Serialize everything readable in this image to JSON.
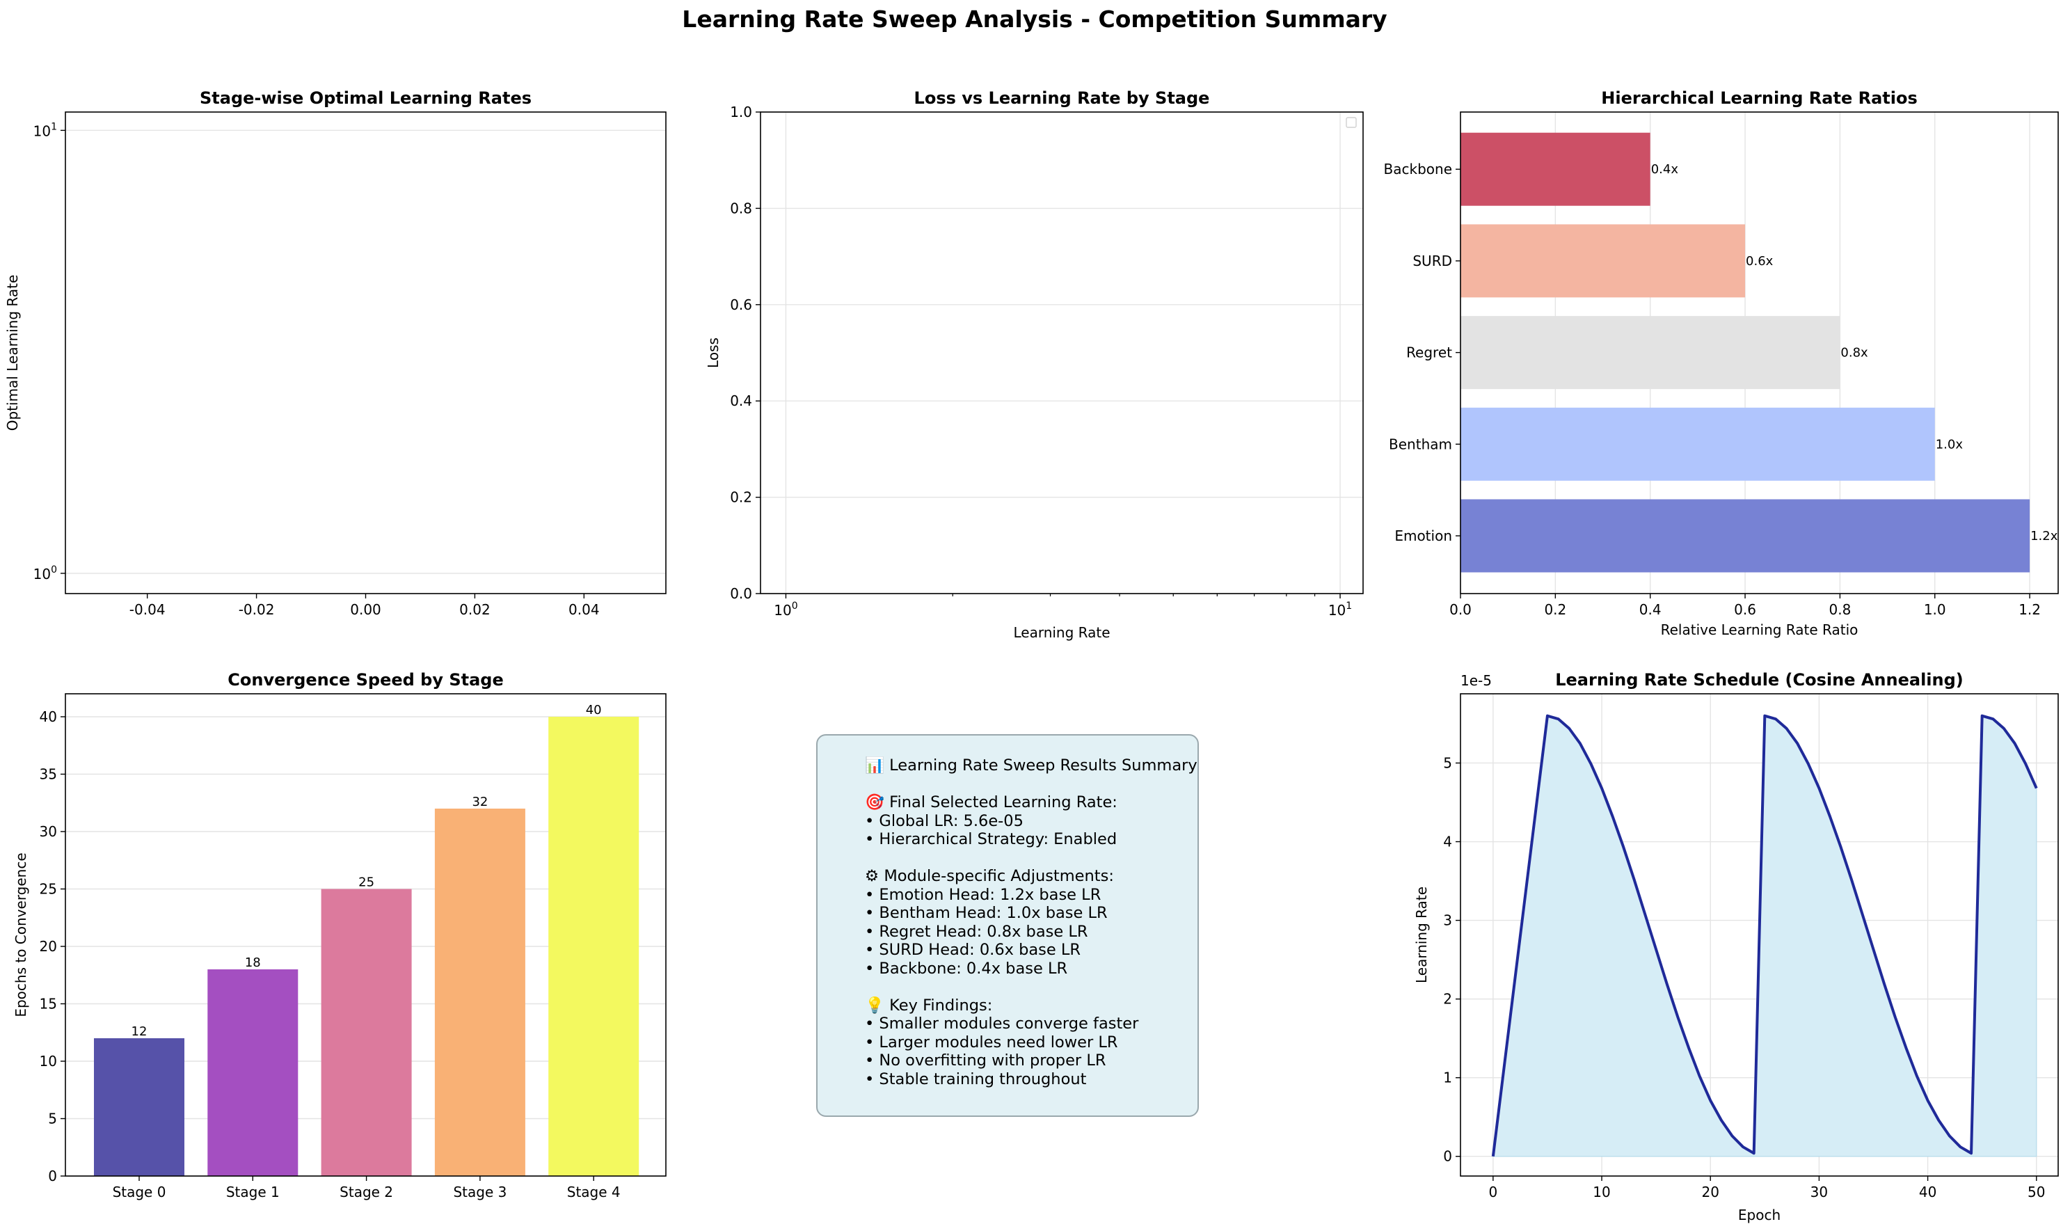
{
  "figure_title": "Learning Rate Sweep Analysis - Competition Summary",
  "chart_data": [
    {
      "id": "optimal-lr",
      "type": "scatter",
      "title": "Stage-wise Optimal Learning Rates",
      "xlabel": "",
      "ylabel": "Optimal Learning Rate",
      "x_ticks": [
        "-0.04",
        "-0.02",
        "0.00",
        "0.02",
        "0.04"
      ],
      "xlim": [
        -0.055,
        0.055
      ],
      "yscale": "log",
      "ylim": [
        0.9,
        11
      ],
      "y_ticks": [
        {
          "base": "10",
          "exp": "0",
          "value": 1
        },
        {
          "base": "10",
          "exp": "1",
          "value": 10
        }
      ],
      "series": [],
      "grid": true
    },
    {
      "id": "loss-vs-lr",
      "type": "line",
      "title": "Loss vs Learning Rate by Stage",
      "xlabel": "Learning Rate",
      "ylabel": "Loss",
      "xscale": "log",
      "xlim": [
        0.9,
        11
      ],
      "x_ticks": [
        {
          "base": "10",
          "exp": "0",
          "value": 1
        },
        {
          "base": "10",
          "exp": "1",
          "value": 10
        }
      ],
      "ylim": [
        0,
        1.0
      ],
      "y_ticks": [
        "0.0",
        "0.2",
        "0.4",
        "0.6",
        "0.8",
        "1.0"
      ],
      "legend": "upper right (empty)",
      "series": [],
      "grid": true
    },
    {
      "id": "hier-ratios",
      "type": "bar",
      "orientation": "horizontal",
      "title": "Hierarchical Learning Rate Ratios",
      "xlabel": "Relative Learning Rate Ratio",
      "ylabel": "",
      "categories": [
        "Emotion",
        "Bentham",
        "Regret",
        "SURD",
        "Backbone"
      ],
      "values": [
        1.2,
        1.0,
        0.8,
        0.6,
        0.4
      ],
      "value_labels": [
        "1.2x",
        "1.0x",
        "0.8x",
        "0.6x",
        "0.4x"
      ],
      "colors": [
        "#7782d4",
        "#b0c5fd",
        "#e3e3e3",
        "#f4b5a1",
        "#cc5066"
      ],
      "xlim": [
        0,
        1.26
      ],
      "x_ticks": [
        "0.0",
        "0.2",
        "0.4",
        "0.6",
        "0.8",
        "1.0",
        "1.2"
      ],
      "grid": true
    },
    {
      "id": "convergence",
      "type": "bar",
      "title": "Convergence Speed by Stage",
      "xlabel": "",
      "ylabel": "Epochs to Convergence",
      "categories": [
        "Stage 0",
        "Stage 1",
        "Stage 2",
        "Stage 3",
        "Stage 4"
      ],
      "values": [
        12,
        18,
        25,
        32,
        40
      ],
      "value_labels": [
        "12",
        "18",
        "25",
        "32",
        "40"
      ],
      "colors": [
        "#5652a9",
        "#a44fc1",
        "#dc7a9d",
        "#f9b175",
        "#f3f95f"
      ],
      "ylim": [
        0,
        42
      ],
      "y_ticks": [
        "0",
        "5",
        "10",
        "15",
        "20",
        "25",
        "30",
        "35",
        "40"
      ],
      "grid": true
    },
    {
      "id": "lr-schedule",
      "type": "area",
      "title": "Learning Rate Schedule (Cosine Annealing)",
      "xlabel": "Epoch",
      "ylabel": "Learning Rate",
      "y_offset_label": "1e-5",
      "x": [
        0,
        5,
        6,
        7,
        8,
        9,
        10,
        11,
        12,
        13,
        14,
        15,
        16,
        17,
        18,
        19,
        20,
        21,
        22,
        23,
        24,
        25,
        26,
        27,
        28,
        29,
        30,
        31,
        32,
        33,
        34,
        35,
        36,
        37,
        38,
        39,
        40,
        41,
        42,
        43,
        44,
        45,
        46,
        47,
        48,
        49,
        50
      ],
      "y": [
        0.0,
        5.6,
        5.56,
        5.44,
        5.25,
        4.99,
        4.68,
        4.32,
        3.93,
        3.51,
        3.07,
        2.63,
        2.19,
        1.77,
        1.38,
        1.02,
        0.71,
        0.46,
        0.26,
        0.12,
        0.04,
        5.6,
        5.56,
        5.44,
        5.25,
        4.99,
        4.68,
        4.32,
        3.93,
        3.51,
        3.07,
        2.63,
        2.19,
        1.77,
        1.38,
        1.02,
        0.71,
        0.46,
        0.26,
        0.12,
        0.04,
        5.6,
        5.56,
        5.44,
        5.25,
        4.99,
        4.68
      ],
      "xlim": [
        -3,
        52
      ],
      "x_ticks": [
        "0",
        "10",
        "20",
        "30",
        "40",
        "50"
      ],
      "ylim": [
        -0.25,
        5.88
      ],
      "y_ticks": [
        "0",
        "1",
        "2",
        "3",
        "4",
        "5"
      ],
      "line_color": "#1f2a99",
      "fill_color": "#d6edf6",
      "grid": true
    }
  ],
  "summary": {
    "lines": [
      "📊 Learning Rate Sweep Results Summary",
      "",
      "🎯 Final Selected Learning Rate:",
      "• Global LR: 5.6e-05",
      "• Hierarchical Strategy: Enabled",
      "",
      "⚙ Module-specific Adjustments:",
      "• Emotion Head: 1.2x base LR",
      "• Bentham Head: 1.0x base LR",
      "• Regret Head: 0.8x base LR",
      "• SURD Head: 0.6x base LR",
      "• Backbone: 0.4x base LR",
      "",
      "💡 Key Findings:",
      "• Smaller modules converge faster",
      "• Larger modules need lower LR",
      "• No overfitting with proper LR",
      "• Stable training throughout"
    ]
  }
}
